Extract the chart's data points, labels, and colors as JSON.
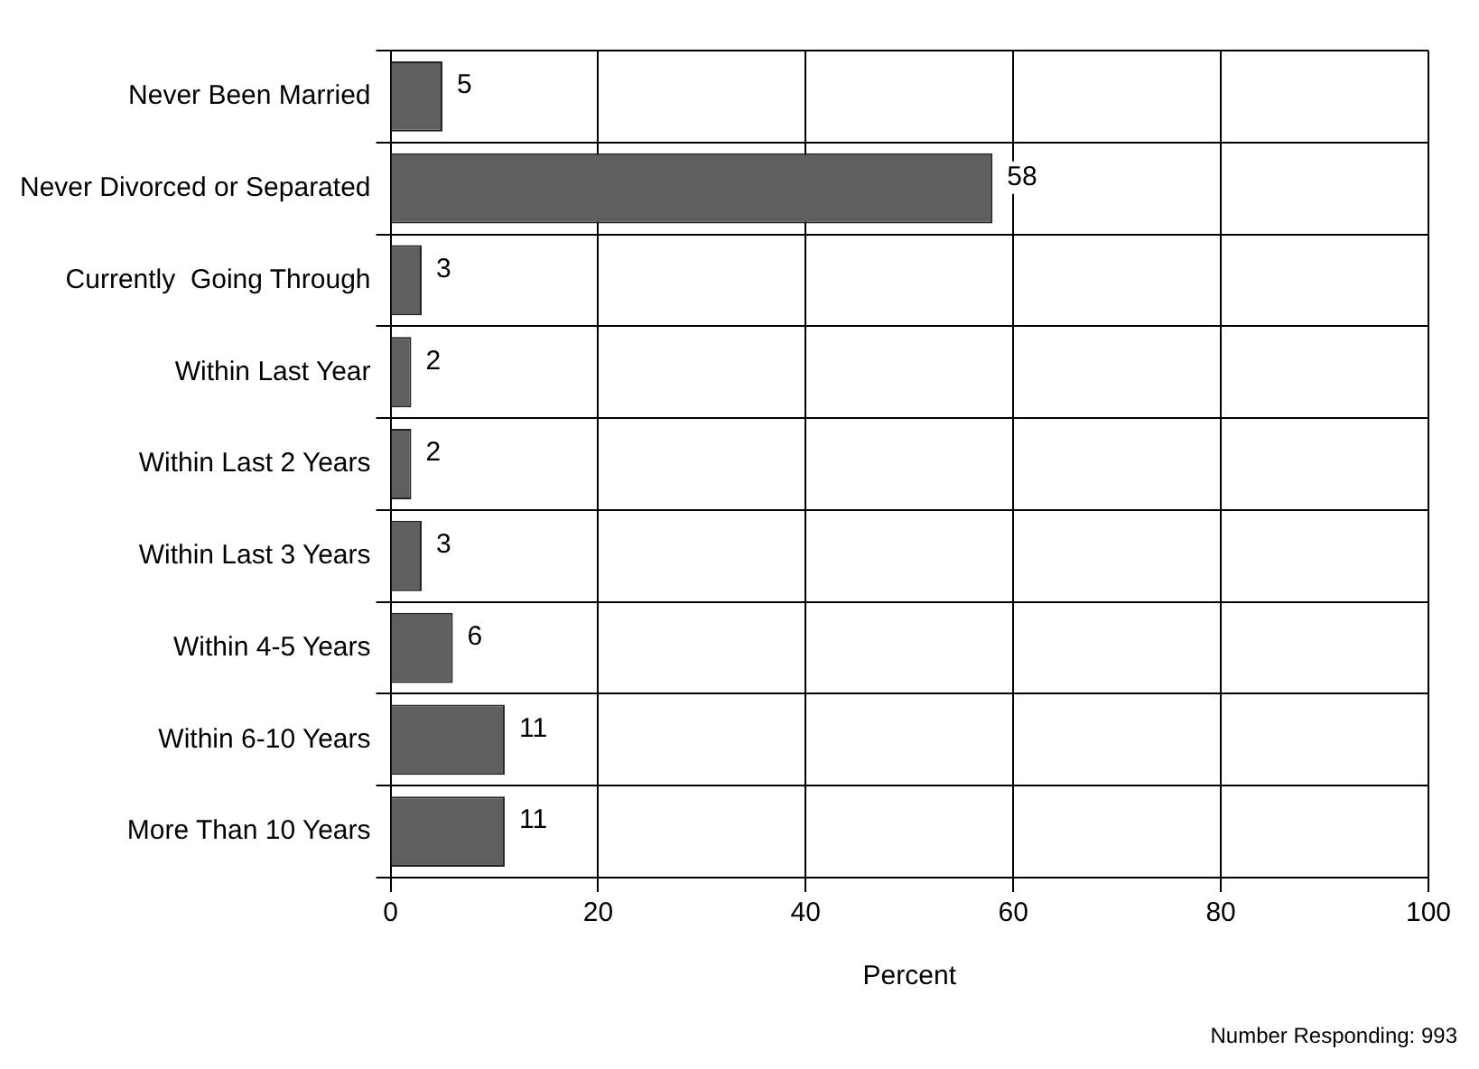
{
  "chart_data": {
    "type": "bar",
    "orientation": "horizontal",
    "xlabel": "Percent",
    "categories": [
      "Never Been Married",
      "Never Divorced or Separated",
      "Currently  Going Through",
      "Within Last Year",
      "Within Last 2 Years",
      "Within Last 3 Years",
      "Within 4-5 Years",
      "Within 6-10 Years",
      "More Than 10 Years"
    ],
    "values": [
      5,
      58,
      3,
      2,
      2,
      3,
      6,
      11,
      11
    ],
    "color": "#5f5f5f",
    "xlim": [
      0,
      100
    ],
    "xticks": [
      0,
      20,
      40,
      60,
      80,
      100
    ],
    "grid": true,
    "data_labels": true,
    "legend": false,
    "annotations": [
      "Number Responding: 993"
    ]
  }
}
